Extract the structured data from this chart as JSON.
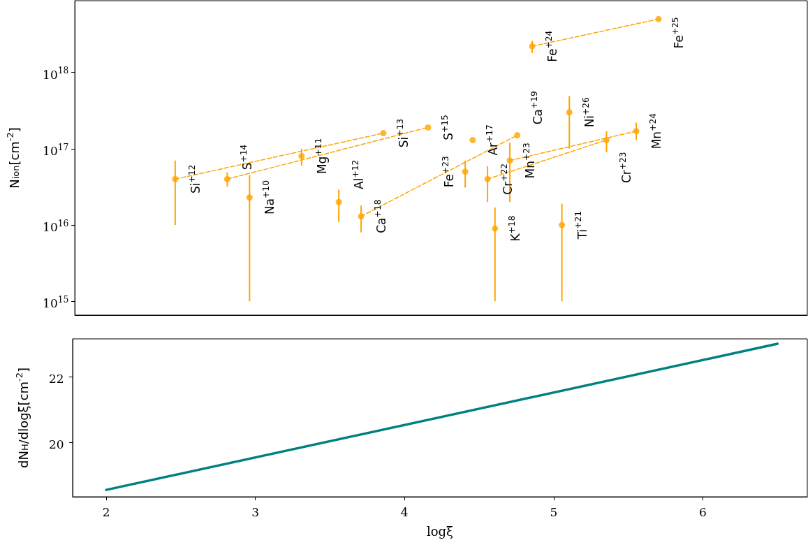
{
  "chart_data": [
    {
      "type": "scatter",
      "ylabel": "N$_{ion}$[cm$^{-2}$]",
      "log": "y",
      "tick_labels": "y",
      "xlim": [
        1.775,
        6.7
      ],
      "ylim": [
        660000000000000.0,
        8.7e+18
      ],
      "yticks": [
        {
          "value": 1000000000000000.0,
          "label": "10$^{15}$"
        },
        {
          "value": 1e+16,
          "label": "10$^{16}$"
        },
        {
          "value": 1e+17,
          "label": "10$^{17}$"
        },
        {
          "value": 1e+18,
          "label": "10$^{18}$"
        }
      ],
      "series": [
        {
          "color": "#ffa500",
          "marker": "circle",
          "x": [
            2.45,
            2.8,
            2.95,
            3.3,
            3.85,
            4.15,
            3.55,
            3.7,
            4.4,
            4.45,
            4.55,
            4.6,
            4.7,
            4.75,
            4.85,
            5.7,
            5.05,
            5.1,
            5.35,
            5.55
          ],
          "values": [
            4e+16,
            4e+16,
            2.3e+16,
            8e+16,
            1.6e+17,
            1.9e+17,
            2e+16,
            1.3e+16,
            5e+16,
            1.3e+17,
            4e+16,
            9000000000000000.0,
            7e+16,
            1.5e+17,
            2.2e+18,
            5e+18,
            1e+16,
            3e+17,
            1.3e+17,
            1.7e+17
          ],
          "errors": [
            [
              1e+16,
              7e+16
            ],
            [
              3.2e+16,
              4.9e+16
            ],
            [
              1000000000000000.0,
              4.5e+16
            ],
            [
              6e+16,
              1e+17
            ],
            null,
            null,
            [
              1.1e+16,
              2.9e+16
            ],
            [
              8000000000000000.0,
              1.8e+16
            ],
            [
              3.1e+16,
              7e+16
            ],
            null,
            [
              2e+16,
              5.9e+16
            ],
            [
              1000000000000000.0,
              1.7e+16
            ],
            [
              2e+16,
              1.2e+17
            ],
            null,
            [
              1.8e+18,
              2.6e+18
            ],
            null,
            [
              1000000000000000.0,
              1.9e+16
            ],
            [
              1e+17,
              4.9e+17
            ],
            [
              9e+16,
              1.7e+17
            ],
            [
              1.3e+17,
              2.2e+17
            ]
          ]
        },
        {
          "type": "line",
          "color": "#ffa500",
          "marker": "none",
          "line_style": "dashed",
          "x": [
            2.45,
            3.85
          ],
          "values": [
            4e+16,
            1.6e+17
          ]
        },
        {
          "type": "line",
          "color": "#ffa500",
          "marker": "none",
          "line_style": "dashed",
          "x": [
            2.8,
            4.15
          ],
          "values": [
            4e+16,
            1.9e+17
          ]
        },
        {
          "type": "line",
          "color": "#ffa500",
          "marker": "none",
          "line_style": "dashed",
          "x": [
            3.7,
            4.75
          ],
          "values": [
            1.3e+16,
            1.5e+17
          ]
        },
        {
          "type": "line",
          "color": "#ffa500",
          "marker": "none",
          "line_style": "dashed",
          "x": [
            4.55,
            5.35
          ],
          "values": [
            4e+16,
            1.3e+17
          ]
        },
        {
          "type": "line",
          "color": "#ffa500",
          "marker": "none",
          "line_style": "dashed",
          "x": [
            4.7,
            5.55
          ],
          "values": [
            7e+16,
            1.7e+17
          ]
        },
        {
          "type": "line",
          "color": "#ffa500",
          "marker": "none",
          "line_style": "dashed",
          "x": [
            4.85,
            5.7
          ],
          "values": [
            2.2e+18,
            5e+18
          ]
        }
      ],
      "annotations": [
        {
          "text": "Si$^{+12}$",
          "x": 2.45,
          "y": 4e+16
        },
        {
          "text": "S$^{+14}$",
          "x": 2.8,
          "y": 4e+16
        },
        {
          "text": "Na$^{+10}$",
          "x": 2.95,
          "y": 2.3e+16
        },
        {
          "text": "Mg$^{+11}$",
          "x": 3.3,
          "y": 8e+16
        },
        {
          "text": "Si$^{+13}$",
          "x": 3.85,
          "y": 1.6e+17
        },
        {
          "text": "S$^{+15}$",
          "x": 4.15,
          "y": 1.9e+17
        },
        {
          "text": "Al$^{+12}$",
          "x": 3.55,
          "y": 2e+16
        },
        {
          "text": "Ca$^{+18}$",
          "x": 3.7,
          "y": 1.3e+16
        },
        {
          "text": "Fe$^{+23}$",
          "x": 4.4,
          "y": 5e+16
        },
        {
          "text": "Ar$^{+17}$",
          "x": 4.45,
          "y": 1.3e+17
        },
        {
          "text": "Cr$^{+22}$",
          "x": 4.55,
          "y": 4e+16
        },
        {
          "text": "K$^{+18}$",
          "x": 4.6,
          "y": 9000000000000000.0
        },
        {
          "text": "Mn$^{+23}$",
          "x": 4.7,
          "y": 7e+16
        },
        {
          "text": "Ca$^{+19}$",
          "x": 4.75,
          "y": 1.5e+17
        },
        {
          "text": "Fe$^{+24}$",
          "x": 4.85,
          "y": 2.2e+18
        },
        {
          "text": "Fe$^{+25}$",
          "x": 5.7,
          "y": 5e+18
        },
        {
          "text": "Ti$^{+21}$",
          "x": 5.05,
          "y": 1e+16
        },
        {
          "text": "Ni$^{+26}$",
          "x": 5.1,
          "y": 3e+17
        },
        {
          "text": "Cr$^{+23}$",
          "x": 5.35,
          "y": 1.3e+17
        },
        {
          "text": "Mn$^{+24}$",
          "x": 5.55,
          "y": 1.7e+17
        }
      ]
    },
    {
      "type": "line",
      "xlabel": "logξ",
      "ylabel": "dN$_{H}$/dlogξ[cm$^{-2}$]",
      "xlim": [
        1.775,
        6.7
      ],
      "ylim": [
        18.34,
        23.15
      ],
      "xticks": [
        2,
        3,
        4,
        5,
        6
      ],
      "yticks": [
        20,
        22
      ],
      "series": [
        {
          "color": "#008080",
          "marker": "none",
          "line_style": "solid",
          "x": [
            2,
            6.5
          ],
          "values": [
            18.55,
            23.0
          ]
        }
      ]
    }
  ]
}
